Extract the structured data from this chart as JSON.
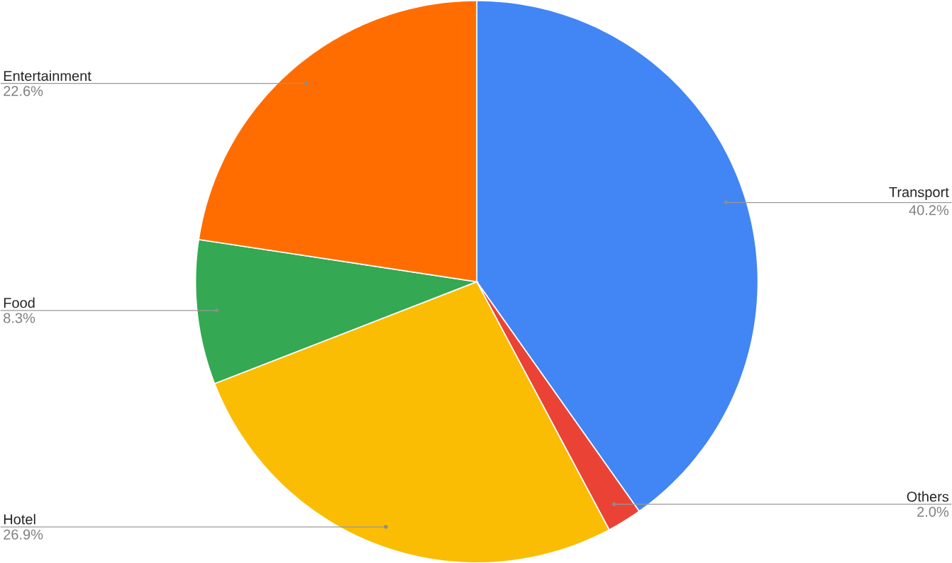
{
  "chart_data": {
    "type": "pie",
    "categories": [
      "Transport",
      "Others",
      "Hotel",
      "Food",
      "Entertainment"
    ],
    "values": [
      40.2,
      2.0,
      26.9,
      8.3,
      22.6
    ],
    "value_labels": [
      "40.2%",
      "2.0%",
      "26.9%",
      "8.3%",
      "22.6%"
    ],
    "colors": [
      "#4285f4",
      "#ea4335",
      "#fbbc04",
      "#34a853",
      "#ff6d01"
    ]
  }
}
